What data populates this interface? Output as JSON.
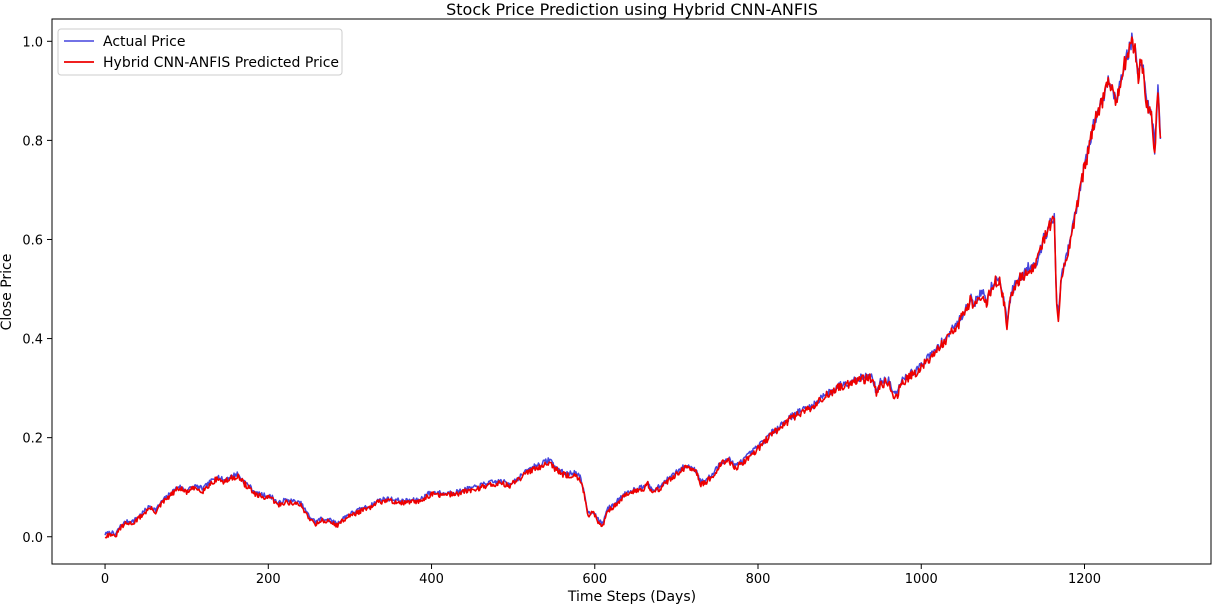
{
  "chart_data": {
    "type": "line",
    "title": "Stock Price Prediction using Hybrid CNN-ANFIS",
    "xlabel": "Time Steps (Days)",
    "ylabel": "Close Price",
    "xlim": [
      -65,
      1355
    ],
    "ylim": [
      -0.055,
      1.045
    ],
    "xticks": [
      0,
      200,
      400,
      600,
      800,
      1000,
      1200
    ],
    "yticks": [
      0.0,
      0.2,
      0.4,
      0.6,
      0.8,
      1.0
    ],
    "xtick_labels": [
      "0",
      "200",
      "400",
      "600",
      "800",
      "1000",
      "1200"
    ],
    "ytick_labels": [
      "0.0",
      "0.2",
      "0.4",
      "0.6",
      "0.8",
      "1.0"
    ],
    "grid": false,
    "legend_position": "top-left",
    "keypoints": [
      [
        0,
        0.003
      ],
      [
        8,
        0.008
      ],
      [
        12,
        0.0
      ],
      [
        18,
        0.018
      ],
      [
        25,
        0.028
      ],
      [
        35,
        0.03
      ],
      [
        45,
        0.045
      ],
      [
        55,
        0.06
      ],
      [
        62,
        0.052
      ],
      [
        70,
        0.07
      ],
      [
        80,
        0.085
      ],
      [
        90,
        0.1
      ],
      [
        100,
        0.092
      ],
      [
        110,
        0.1
      ],
      [
        120,
        0.095
      ],
      [
        130,
        0.11
      ],
      [
        138,
        0.12
      ],
      [
        145,
        0.112
      ],
      [
        155,
        0.12
      ],
      [
        162,
        0.125
      ],
      [
        170,
        0.11
      ],
      [
        178,
        0.098
      ],
      [
        185,
        0.085
      ],
      [
        195,
        0.082
      ],
      [
        205,
        0.078
      ],
      [
        212,
        0.065
      ],
      [
        220,
        0.072
      ],
      [
        230,
        0.07
      ],
      [
        240,
        0.065
      ],
      [
        250,
        0.04
      ],
      [
        258,
        0.028
      ],
      [
        265,
        0.035
      ],
      [
        275,
        0.032
      ],
      [
        285,
        0.025
      ],
      [
        295,
        0.04
      ],
      [
        305,
        0.048
      ],
      [
        315,
        0.055
      ],
      [
        325,
        0.06
      ],
      [
        335,
        0.072
      ],
      [
        345,
        0.075
      ],
      [
        355,
        0.073
      ],
      [
        365,
        0.07
      ],
      [
        375,
        0.072
      ],
      [
        385,
        0.072
      ],
      [
        395,
        0.085
      ],
      [
        405,
        0.088
      ],
      [
        415,
        0.085
      ],
      [
        425,
        0.088
      ],
      [
        435,
        0.09
      ],
      [
        445,
        0.095
      ],
      [
        455,
        0.098
      ],
      [
        465,
        0.105
      ],
      [
        475,
        0.108
      ],
      [
        485,
        0.11
      ],
      [
        495,
        0.105
      ],
      [
        505,
        0.115
      ],
      [
        515,
        0.128
      ],
      [
        525,
        0.14
      ],
      [
        535,
        0.145
      ],
      [
        545,
        0.155
      ],
      [
        550,
        0.142
      ],
      [
        558,
        0.13
      ],
      [
        565,
        0.125
      ],
      [
        575,
        0.128
      ],
      [
        582,
        0.118
      ],
      [
        588,
        0.08
      ],
      [
        592,
        0.045
      ],
      [
        598,
        0.05
      ],
      [
        605,
        0.03
      ],
      [
        610,
        0.025
      ],
      [
        615,
        0.055
      ],
      [
        622,
        0.06
      ],
      [
        630,
        0.075
      ],
      [
        640,
        0.088
      ],
      [
        650,
        0.095
      ],
      [
        660,
        0.1
      ],
      [
        665,
        0.11
      ],
      [
        670,
        0.09
      ],
      [
        680,
        0.1
      ],
      [
        690,
        0.115
      ],
      [
        700,
        0.128
      ],
      [
        710,
        0.14
      ],
      [
        720,
        0.138
      ],
      [
        725,
        0.13
      ],
      [
        730,
        0.108
      ],
      [
        738,
        0.115
      ],
      [
        745,
        0.125
      ],
      [
        755,
        0.15
      ],
      [
        765,
        0.155
      ],
      [
        772,
        0.14
      ],
      [
        780,
        0.15
      ],
      [
        790,
        0.165
      ],
      [
        800,
        0.18
      ],
      [
        812,
        0.2
      ],
      [
        825,
        0.22
      ],
      [
        840,
        0.24
      ],
      [
        855,
        0.255
      ],
      [
        870,
        0.265
      ],
      [
        880,
        0.285
      ],
      [
        890,
        0.29
      ],
      [
        900,
        0.305
      ],
      [
        910,
        0.31
      ],
      [
        920,
        0.318
      ],
      [
        930,
        0.32
      ],
      [
        940,
        0.322
      ],
      [
        945,
        0.29
      ],
      [
        950,
        0.31
      ],
      [
        960,
        0.315
      ],
      [
        965,
        0.29
      ],
      [
        970,
        0.285
      ],
      [
        975,
        0.31
      ],
      [
        985,
        0.325
      ],
      [
        995,
        0.335
      ],
      [
        1005,
        0.355
      ],
      [
        1015,
        0.37
      ],
      [
        1025,
        0.39
      ],
      [
        1035,
        0.41
      ],
      [
        1045,
        0.43
      ],
      [
        1055,
        0.46
      ],
      [
        1060,
        0.48
      ],
      [
        1065,
        0.47
      ],
      [
        1070,
        0.48
      ],
      [
        1075,
        0.495
      ],
      [
        1080,
        0.475
      ],
      [
        1085,
        0.5
      ],
      [
        1090,
        0.515
      ],
      [
        1095,
        0.52
      ],
      [
        1100,
        0.49
      ],
      [
        1105,
        0.43
      ],
      [
        1110,
        0.49
      ],
      [
        1120,
        0.52
      ],
      [
        1130,
        0.54
      ],
      [
        1140,
        0.55
      ],
      [
        1145,
        0.57
      ],
      [
        1150,
        0.6
      ],
      [
        1158,
        0.63
      ],
      [
        1163,
        0.64
      ],
      [
        1166,
        0.47
      ],
      [
        1168,
        0.44
      ],
      [
        1172,
        0.53
      ],
      [
        1178,
        0.56
      ],
      [
        1185,
        0.62
      ],
      [
        1190,
        0.66
      ],
      [
        1195,
        0.7
      ],
      [
        1200,
        0.75
      ],
      [
        1205,
        0.78
      ],
      [
        1210,
        0.82
      ],
      [
        1215,
        0.85
      ],
      [
        1222,
        0.88
      ],
      [
        1228,
        0.92
      ],
      [
        1235,
        0.9
      ],
      [
        1240,
        0.88
      ],
      [
        1245,
        0.93
      ],
      [
        1250,
        0.96
      ],
      [
        1255,
        0.98
      ],
      [
        1258,
        1.0
      ],
      [
        1262,
        0.98
      ],
      [
        1266,
        0.93
      ],
      [
        1270,
        0.97
      ],
      [
        1274,
        0.9
      ],
      [
        1278,
        0.87
      ],
      [
        1282,
        0.86
      ],
      [
        1286,
        0.78
      ],
      [
        1290,
        0.9
      ],
      [
        1293,
        0.81
      ]
    ],
    "series": [
      {
        "name": "Actual Price",
        "color": "#4444dd",
        "noise": 0.006,
        "seed": 7,
        "offset": 0.002
      },
      {
        "name": "Hybrid CNN-ANFIS Predicted Price",
        "color": "#ee0000",
        "noise": 0.007,
        "seed": 31,
        "offset": -0.002
      }
    ]
  }
}
